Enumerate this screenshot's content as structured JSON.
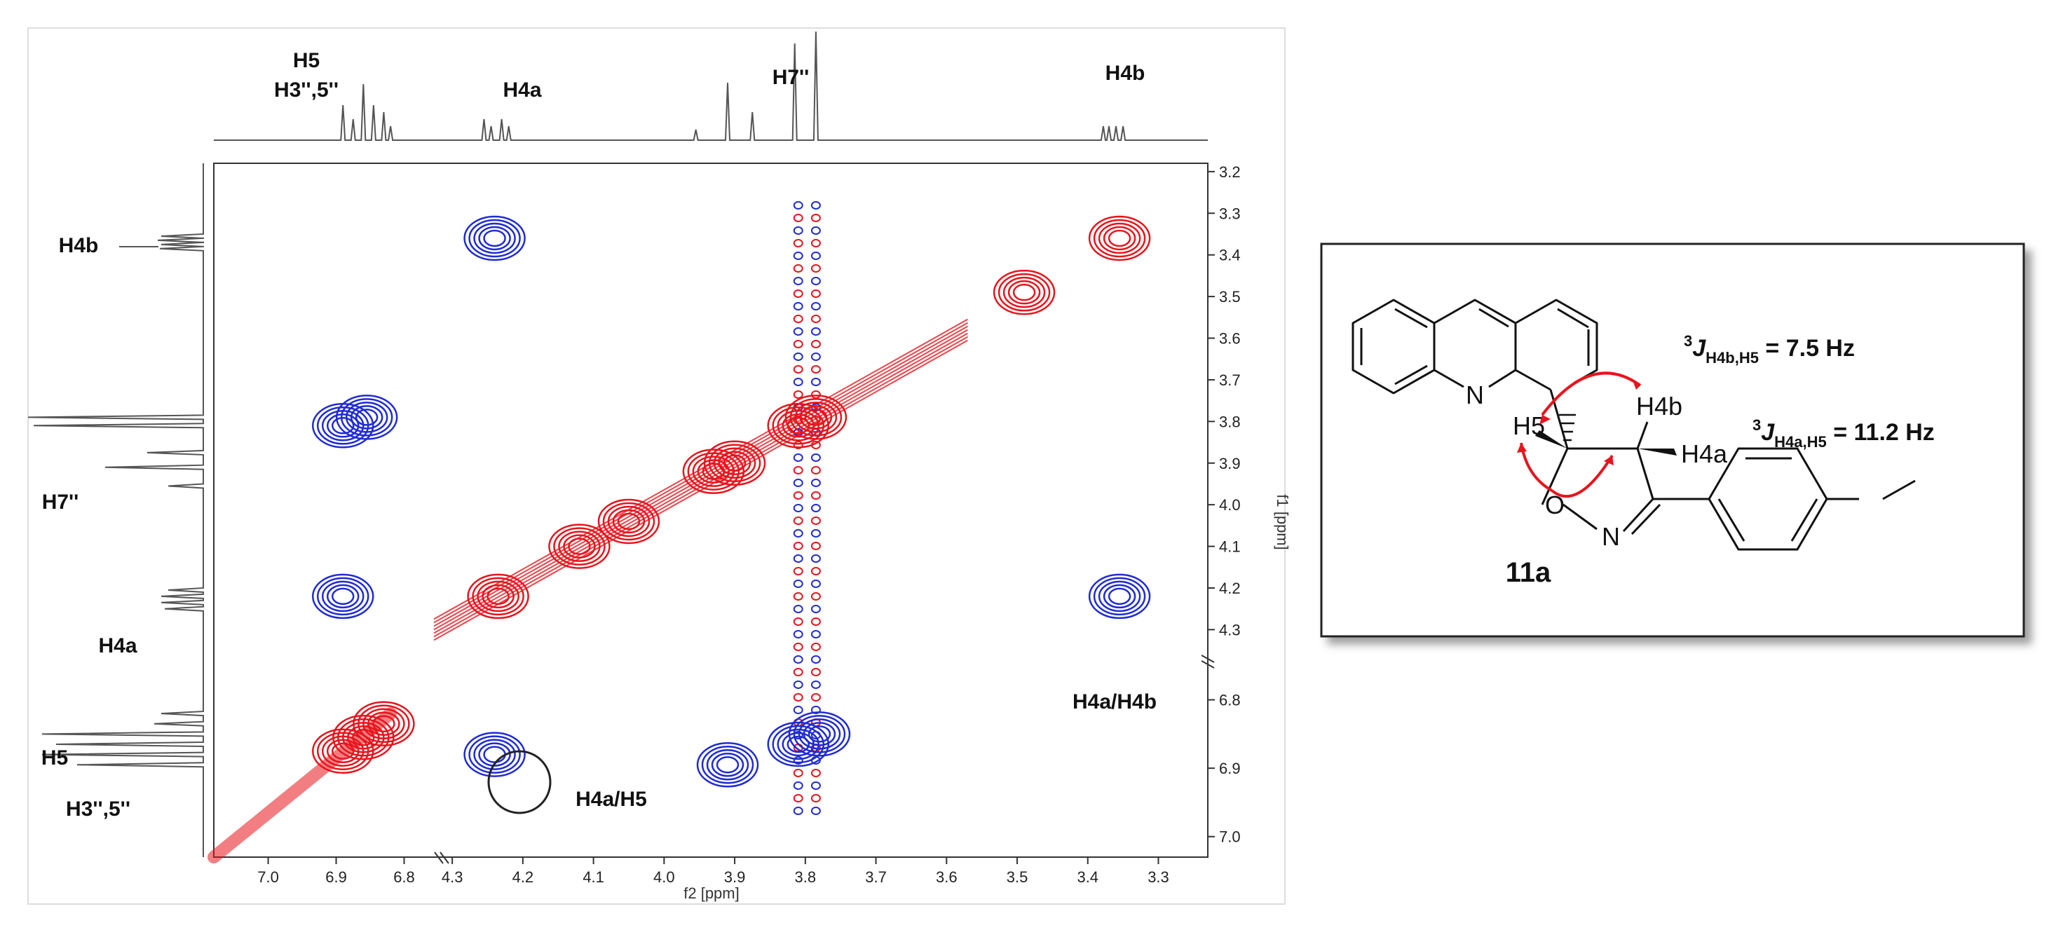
{
  "figure": {
    "top_trace_labels": [
      "H5",
      "H3'',5''",
      "H4a",
      "H7''",
      "H4b"
    ],
    "side_trace_labels": [
      "H4b",
      "H7''",
      "H4a",
      "H5",
      "H3'',5''"
    ],
    "crosspeak_labels": [
      "H4a/H4b",
      "H4a/H5"
    ],
    "x_axis_title": "f2 [ppm]",
    "y_axis_title": "f1 [ppm]"
  },
  "chart_data": {
    "type": "heatmap",
    "title": "",
    "xlabel": "f2 [ppm]",
    "ylabel": "f1 [ppm]",
    "x_segments": [
      {
        "range": [
          7.08,
          6.75
        ],
        "ticks": [
          "7.0",
          "6.9",
          "6.8"
        ]
      },
      {
        "range": [
          4.32,
          3.23
        ],
        "ticks": [
          "4.3",
          "4.2",
          "4.1",
          "4.0",
          "3.9",
          "3.8",
          "3.7",
          "3.6",
          "3.5",
          "3.4",
          "3.3"
        ]
      }
    ],
    "y_segments": [
      {
        "range": [
          3.18,
          4.37
        ],
        "ticks": [
          "3.2",
          "3.3",
          "3.4",
          "3.5",
          "3.6",
          "3.7",
          "3.8",
          "3.9",
          "4.0",
          "4.1",
          "4.2",
          "4.3"
        ]
      },
      {
        "range": [
          6.74,
          7.03
        ],
        "ticks": [
          "6.8",
          "6.9",
          "7.0"
        ]
      }
    ],
    "positive_color": "#e8141c",
    "negative_color": "#1f2bd4",
    "peaks": [
      {
        "f2": 4.24,
        "f1": 3.36,
        "phase": "negative"
      },
      {
        "f2": 3.355,
        "f1": 3.36,
        "phase": "positive"
      },
      {
        "f2": 6.89,
        "f1": 3.81,
        "phase": "negative"
      },
      {
        "f2": 6.855,
        "f1": 3.79,
        "phase": "negative"
      },
      {
        "f2": 6.89,
        "f1": 4.22,
        "phase": "negative"
      },
      {
        "f2": 4.235,
        "f1": 4.22,
        "phase": "positive"
      },
      {
        "f2": 3.355,
        "f1": 4.22,
        "phase": "negative"
      },
      {
        "f2": 4.24,
        "f1": 6.88,
        "phase": "negative"
      },
      {
        "f2": 3.91,
        "f1": 6.895,
        "phase": "negative"
      },
      {
        "f2": 3.81,
        "f1": 6.865,
        "phase": "negative"
      },
      {
        "f2": 3.78,
        "f1": 6.85,
        "phase": "negative"
      },
      {
        "f2": 6.89,
        "f1": 6.875,
        "phase": "positive"
      },
      {
        "f2": 6.86,
        "f1": 6.855,
        "phase": "positive"
      },
      {
        "f2": 6.83,
        "f1": 6.835,
        "phase": "positive"
      },
      {
        "f2": 3.81,
        "f1": 3.81,
        "phase": "positive"
      },
      {
        "f2": 3.785,
        "f1": 3.79,
        "phase": "positive"
      },
      {
        "f2": 3.93,
        "f1": 3.92,
        "phase": "positive"
      },
      {
        "f2": 3.9,
        "f1": 3.9,
        "phase": "positive"
      },
      {
        "f2": 4.05,
        "f1": 4.04,
        "phase": "positive"
      },
      {
        "f2": 4.12,
        "f1": 4.1,
        "phase": "positive"
      },
      {
        "f2": 3.49,
        "f1": 3.49,
        "phase": "positive"
      }
    ],
    "diagonal": [
      [
        4.32,
        4.3
      ],
      [
        3.58,
        3.58
      ]
    ],
    "stripes_f2": [
      3.81,
      3.785
    ]
  },
  "structure": {
    "compound_label": "11a",
    "atoms": [
      "N",
      "O",
      "N"
    ],
    "proton_labels": [
      "H5",
      "H4b",
      "H4a"
    ],
    "j_couplings": [
      {
        "text": "3JH4b,H5 = 7.5 Hz",
        "sup": "3",
        "sub": "H4b,H5",
        "value": " = 7.5 Hz"
      },
      {
        "text": "3JH4a,H5 = 11.2 Hz",
        "sup": "3",
        "sub": "H4a,H5",
        "value": " = 11.2 Hz"
      }
    ]
  }
}
